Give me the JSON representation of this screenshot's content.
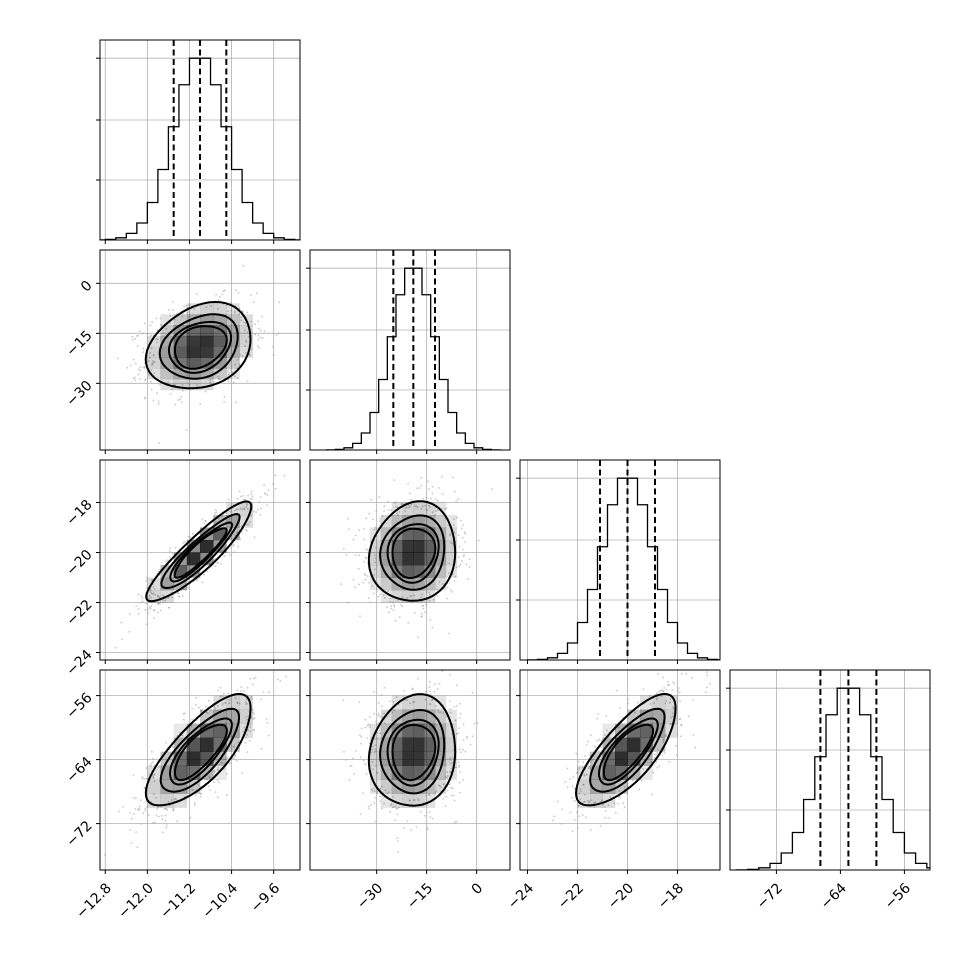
{
  "chart_data": {
    "type": "corner",
    "title": "",
    "parameters": [
      {
        "index": 0,
        "mean": -11.0,
        "sd": 0.5,
        "quantiles": [
          -11.5,
          -11.0,
          -10.5
        ],
        "range": [
          -12.9,
          -9.1
        ],
        "ticks": [
          -12.8,
          -12.0,
          -11.2,
          -10.4,
          -9.6
        ],
        "tick_labels": [
          "−12.8",
          "−12.0",
          "−11.2",
          "−10.4",
          "−9.6"
        ]
      },
      {
        "index": 1,
        "mean": -19.0,
        "sd": 6.5,
        "quantiles": [
          -25.0,
          -19.0,
          -12.5
        ],
        "range": [
          -50,
          10
        ],
        "ticks": [
          -30,
          -15,
          0
        ],
        "tick_labels": [
          "−30",
          "−15",
          "0"
        ]
      },
      {
        "index": 2,
        "mean": -20.0,
        "sd": 1.0,
        "quantiles": [
          -21.1,
          -20.0,
          -18.9
        ],
        "range": [
          -24.3,
          -16.3
        ],
        "ticks": [
          -24,
          -22,
          -20,
          -18
        ],
        "tick_labels": [
          "−24",
          "−22",
          "−20",
          "−18"
        ]
      },
      {
        "index": 3,
        "mean": -63.0,
        "sd": 3.5,
        "quantiles": [
          -66.5,
          -63.0,
          -59.5
        ],
        "range": [
          -77.8,
          -52.8
        ],
        "ticks": [
          -72,
          -64,
          -56
        ],
        "tick_labels": [
          "−72",
          "−64",
          "−56"
        ]
      }
    ],
    "correlations": [
      {
        "x": 0,
        "y": 1,
        "r": 0.25
      },
      {
        "x": 0,
        "y": 2,
        "r": 0.9
      },
      {
        "x": 0,
        "y": 3,
        "r": 0.75
      },
      {
        "x": 1,
        "y": 2,
        "r": 0.1
      },
      {
        "x": 1,
        "y": 3,
        "r": 0.1
      },
      {
        "x": 2,
        "y": 3,
        "r": 0.75
      }
    ],
    "histogram_bins": 20,
    "contour_levels_sigma": [
      0.5,
      1.0,
      1.5,
      2.0
    ],
    "grid": true,
    "colors": {
      "hist": "#000000",
      "points": "#9a9a9a",
      "density": "#000000"
    }
  }
}
